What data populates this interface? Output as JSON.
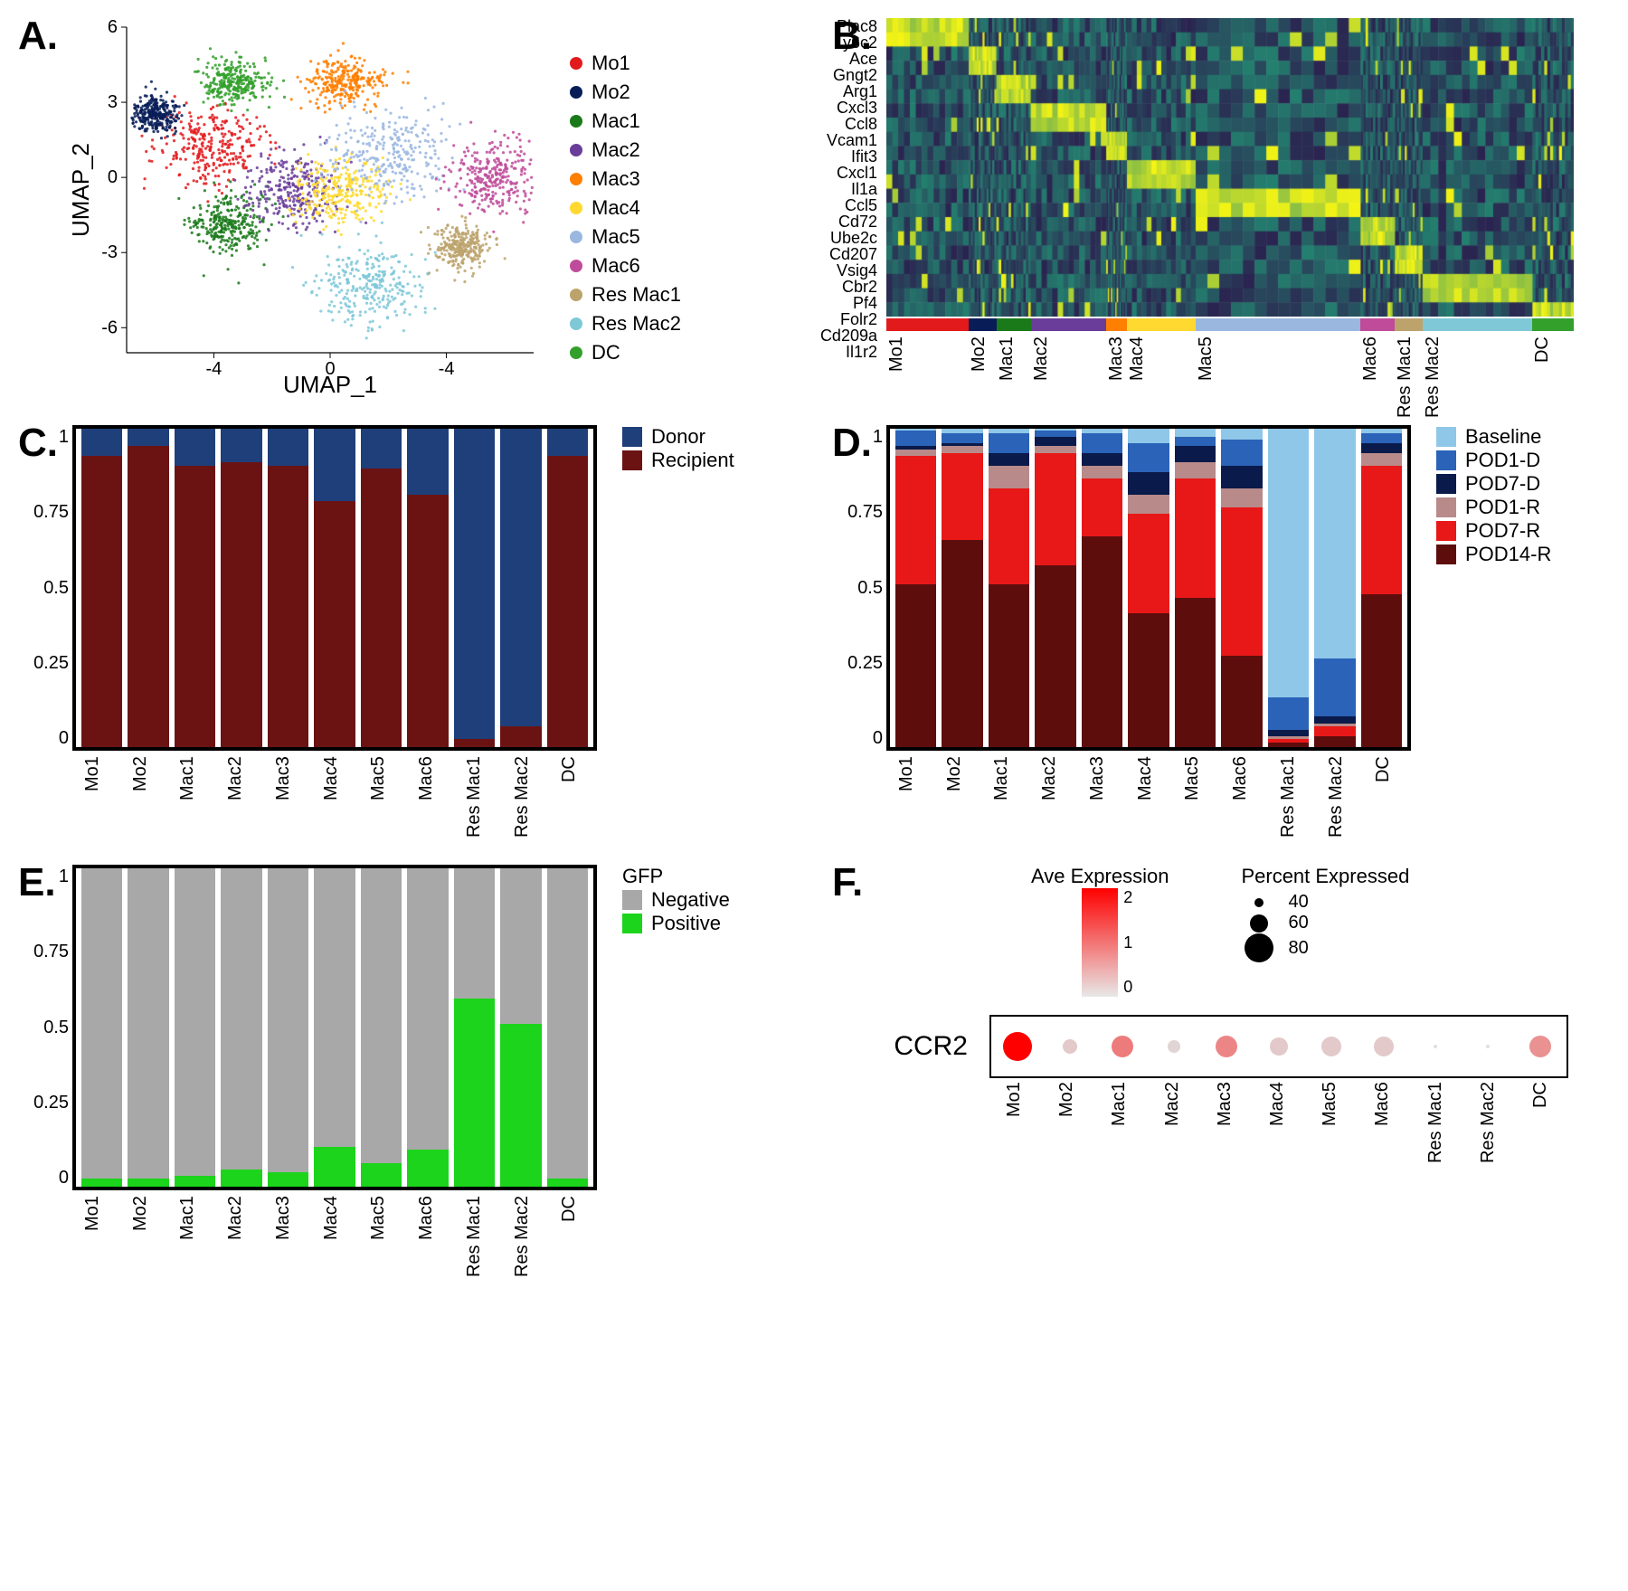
{
  "clusters": [
    "Mo1",
    "Mo2",
    "Mac1",
    "Mac2",
    "Mac3",
    "Mac4",
    "Mac5",
    "Mac6",
    "Res Mac1",
    "Res Mac2",
    "DC"
  ],
  "cluster_colors": {
    "Mo1": "#e31a1c",
    "Mo2": "#081d58",
    "Mac1": "#1a7a1a",
    "Mac2": "#6a3d9a",
    "Mac3": "#ff7f00",
    "Mac4": "#ffd92f",
    "Mac5": "#9ab7e0",
    "Mac6": "#c04b9a",
    "Res Mac1": "#bca36c",
    "Res Mac2": "#7ec8d8",
    "DC": "#33a02c"
  },
  "panelA": {
    "label": "A.",
    "xaxis": "UMAP_1",
    "yaxis": "UMAP_2",
    "xlim": [
      -7,
      7
    ],
    "ylim": [
      -7,
      6
    ],
    "xticks": [
      -4,
      0,
      -4
    ],
    "yticks": [
      -6,
      -3,
      0,
      3,
      6
    ],
    "n_points": 3200,
    "seed": 17,
    "cluster_centers": {
      "Mo1": [
        -4.2,
        1.2,
        2.0,
        1.8
      ],
      "Mo2": [
        -6.0,
        2.5,
        0.8,
        0.8
      ],
      "Mac1": [
        -3.5,
        -1.8,
        1.4,
        1.4
      ],
      "Mac2": [
        -1.3,
        -0.5,
        1.8,
        1.6
      ],
      "Mac3": [
        0.5,
        3.8,
        1.4,
        1.0
      ],
      "Mac4": [
        0.4,
        -0.6,
        1.8,
        1.4
      ],
      "Mac5": [
        2.0,
        1.0,
        2.4,
        2.0
      ],
      "Mac6": [
        5.6,
        0.0,
        1.6,
        1.6
      ],
      "Res Mac1": [
        4.5,
        -2.8,
        1.0,
        1.0
      ],
      "Res Mac2": [
        1.3,
        -4.3,
        2.0,
        1.6
      ],
      "DC": [
        -3.3,
        3.8,
        1.2,
        1.0
      ]
    }
  },
  "panelB": {
    "label": "B.",
    "genes": [
      "Plac8",
      "Ly6c2",
      "Ace",
      "Gngt2",
      "Arg1",
      "Cxcl3",
      "Ccl8",
      "Vcam1",
      "Ifit3",
      "Cxcl1",
      "Il1a",
      "Ccl5",
      "Cd72",
      "Ube2c",
      "Cd207",
      "Vsig4",
      "Cbr2",
      "Pf4",
      "Folr2",
      "Cd209a",
      "Il1r2"
    ],
    "color_low": "#2b2350",
    "color_mid": "#238b73",
    "color_high": "#f5f514",
    "col_widths": [
      0.12,
      0.04,
      0.05,
      0.11,
      0.03,
      0.1,
      0.24,
      0.05,
      0.04,
      0.16,
      0.06
    ]
  },
  "panelC": {
    "label": "C.",
    "legend_title": "",
    "series": [
      {
        "name": "Donor",
        "color": "#1f3f7a"
      },
      {
        "name": "Recipient",
        "color": "#6b1313"
      }
    ],
    "yticks": [
      "0",
      "0.25",
      "0.5",
      "0.75",
      "1"
    ],
    "data": {
      "Mo1": [
        0.09,
        0.91
      ],
      "Mo2": [
        0.06,
        0.94
      ],
      "Mac1": [
        0.12,
        0.88
      ],
      "Mac2": [
        0.11,
        0.89
      ],
      "Mac3": [
        0.12,
        0.88
      ],
      "Mac4": [
        0.23,
        0.77
      ],
      "Mac5": [
        0.13,
        0.87
      ],
      "Mac6": [
        0.21,
        0.79
      ],
      "Res Mac1": [
        0.97,
        0.03
      ],
      "Res Mac2": [
        0.93,
        0.07
      ],
      "DC": [
        0.09,
        0.91
      ]
    }
  },
  "panelD": {
    "label": "D.",
    "series": [
      {
        "name": "Baseline",
        "color": "#8fc7e8"
      },
      {
        "name": "POD1-D",
        "color": "#2a63b8"
      },
      {
        "name": "POD7-D",
        "color": "#0a1a4a"
      },
      {
        "name": "POD1-R",
        "color": "#b88a8a"
      },
      {
        "name": "POD7-R",
        "color": "#e81818"
      },
      {
        "name": "POD14-R",
        "color": "#5e0d0d"
      }
    ],
    "yticks": [
      "0",
      "0.25",
      "0.5",
      "0.75",
      "1"
    ],
    "data": {
      "Mo1": [
        0.01,
        0.05,
        0.01,
        0.02,
        0.4,
        0.51
      ],
      "Mo2": [
        0.02,
        0.03,
        0.01,
        0.02,
        0.27,
        0.65
      ],
      "Mac1": [
        0.02,
        0.06,
        0.04,
        0.07,
        0.3,
        0.51
      ],
      "Mac2": [
        0.01,
        0.02,
        0.03,
        0.02,
        0.35,
        0.57
      ],
      "Mac3": [
        0.02,
        0.06,
        0.04,
        0.04,
        0.18,
        0.66
      ],
      "Mac4": [
        0.05,
        0.09,
        0.07,
        0.06,
        0.31,
        0.42
      ],
      "Mac5": [
        0.03,
        0.03,
        0.05,
        0.05,
        0.37,
        0.47
      ],
      "Mac6": [
        0.04,
        0.08,
        0.07,
        0.06,
        0.46,
        0.29
      ],
      "Res Mac1": [
        0.84,
        0.1,
        0.02,
        0.01,
        0.01,
        0.02
      ],
      "Res Mac2": [
        0.72,
        0.18,
        0.02,
        0.01,
        0.03,
        0.04
      ],
      "DC": [
        0.02,
        0.03,
        0.03,
        0.04,
        0.4,
        0.48
      ]
    }
  },
  "panelE": {
    "label": "E.",
    "legend_title": "GFP",
    "series": [
      {
        "name": "Negative",
        "color": "#a8a8a8"
      },
      {
        "name": "Positive",
        "color": "#1bd41b"
      }
    ],
    "yticks": [
      "0",
      "0.25",
      "0.5",
      "0.75",
      "1"
    ],
    "data": {
      "Mo1": [
        0.97,
        0.03
      ],
      "Mo2": [
        0.97,
        0.03
      ],
      "Mac1": [
        0.96,
        0.04
      ],
      "Mac2": [
        0.94,
        0.06
      ],
      "Mac3": [
        0.95,
        0.05
      ],
      "Mac4": [
        0.87,
        0.13
      ],
      "Mac5": [
        0.92,
        0.08
      ],
      "Mac6": [
        0.88,
        0.12
      ],
      "Res Mac1": [
        0.41,
        0.59
      ],
      "Res Mac2": [
        0.49,
        0.51
      ],
      "DC": [
        0.97,
        0.03
      ]
    }
  },
  "panelF": {
    "label": "F.",
    "gene": "CCR2",
    "grad_title": "Ave Expression",
    "grad_ticks": [
      "2",
      "1",
      "0"
    ],
    "size_title": "Percent Expressed",
    "size_levels": [
      {
        "label": "40",
        "r": 5
      },
      {
        "label": "60",
        "r": 10
      },
      {
        "label": "80",
        "r": 16
      }
    ],
    "dots": {
      "Mo1": {
        "expr": 2.0,
        "pct": 82
      },
      "Mo2": {
        "expr": 0.2,
        "pct": 40
      },
      "Mac1": {
        "expr": 0.9,
        "pct": 60
      },
      "Mac2": {
        "expr": 0.1,
        "pct": 35
      },
      "Mac3": {
        "expr": 0.8,
        "pct": 60
      },
      "Mac4": {
        "expr": 0.2,
        "pct": 50
      },
      "Mac5": {
        "expr": 0.2,
        "pct": 55
      },
      "Mac6": {
        "expr": 0.2,
        "pct": 55
      },
      "Res Mac1": {
        "expr": 0.0,
        "pct": 8
      },
      "Res Mac2": {
        "expr": 0.0,
        "pct": 10
      },
      "DC": {
        "expr": 0.7,
        "pct": 60
      }
    },
    "color_low": "#e0e0e0",
    "color_high": "#ff0000"
  }
}
